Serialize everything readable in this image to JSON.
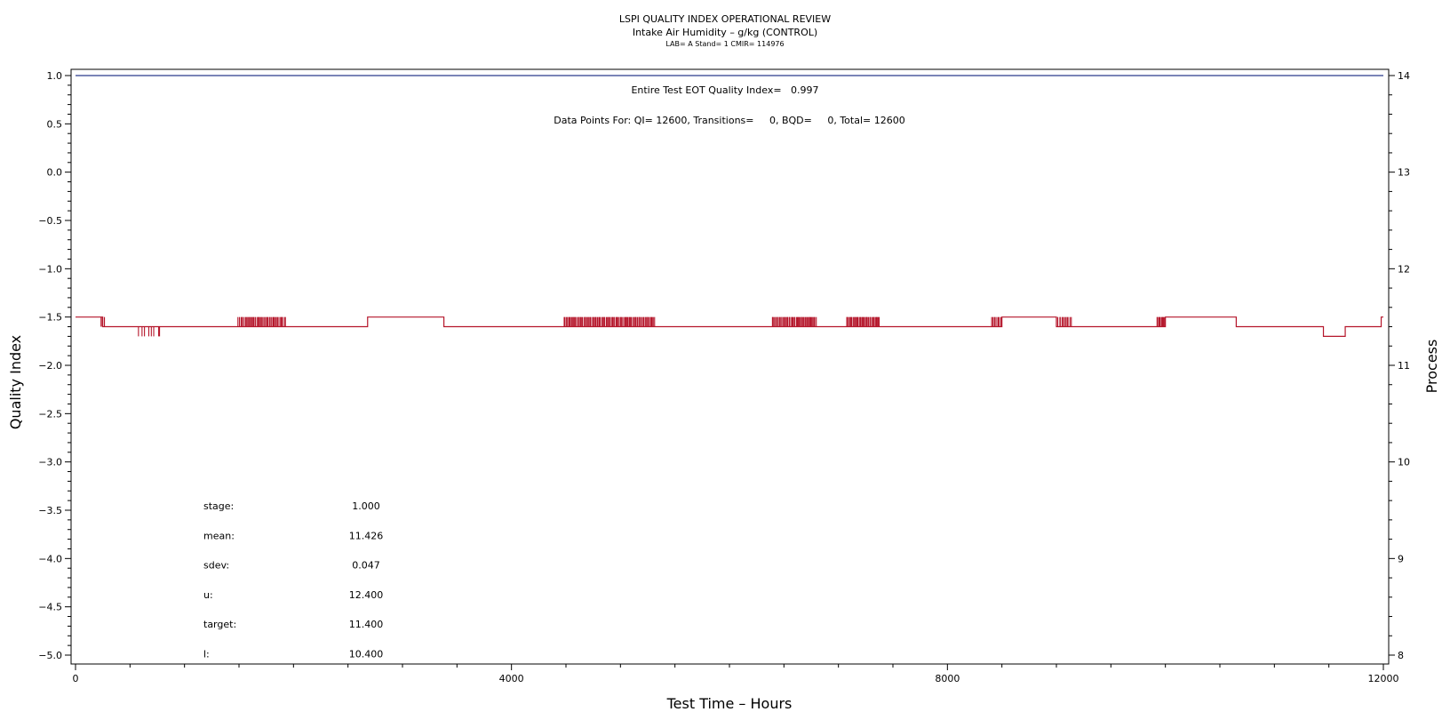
{
  "chart_data": {
    "type": "line",
    "title": "LSPI QUALITY INDEX OPERATIONAL REVIEW",
    "subtitle": "Intake Air Humidity – g/kg (CONTROL)",
    "subtitle2": "LAB= A Stand= 1 CMIR= 114976",
    "annotations": {
      "eot": "Entire Test EOT Quality Index=   0.997",
      "points": "Data Points For: QI= 12600, Transitions=     0, BQD=     0, Total= 12600"
    },
    "xlabel": "Test Time – Hours",
    "ylabel": "Quality Index",
    "y2label": "Process",
    "xlim": [
      0,
      12000
    ],
    "ylim": [
      -5.0,
      1.0
    ],
    "y2lim": [
      8,
      14
    ],
    "xticks": [
      "0",
      "4000",
      "8000",
      "12000"
    ],
    "xtick_values": [
      0,
      4000,
      8000,
      12000
    ],
    "yticks": [
      "1.0",
      "0.5",
      "0.0",
      "−0.5",
      "−1.0",
      "−1.5",
      "−2.0",
      "−2.5",
      "−3.0",
      "−3.5",
      "−4.0",
      "−4.5",
      "−5.0"
    ],
    "ytick_values": [
      1.0,
      0.5,
      0.0,
      -0.5,
      -1.0,
      -1.5,
      -2.0,
      -2.5,
      -3.0,
      -3.5,
      -4.0,
      -4.5,
      -5.0
    ],
    "y2ticks": [
      "14",
      "13",
      "12",
      "11",
      "10",
      "9",
      "8"
    ],
    "y2tick_values": [
      14,
      13,
      12,
      11,
      10,
      9,
      8
    ],
    "colors": {
      "quality_index": "#2b3a8c",
      "process": "#b5162b"
    },
    "series": [
      {
        "axis": "left",
        "x": [
          0,
          12000
        ],
        "y": [
          1.0,
          1.0
        ]
      },
      {
        "axis": "right",
        "base_level": 11.4,
        "segments": [
          {
            "x": [
              0,
              250
            ],
            "y": 11.5
          },
          {
            "x": [
              250,
              2680
            ],
            "y": 11.4
          },
          {
            "x": [
              2680,
              3380
            ],
            "y": 11.5
          },
          {
            "x": [
              3380,
              8500
            ],
            "y": 11.4
          },
          {
            "x": [
              8500,
              9000
            ],
            "y": 11.5
          },
          {
            "x": [
              9000,
              10000
            ],
            "y": 11.4
          },
          {
            "x": [
              10000,
              10650
            ],
            "y": 11.5
          },
          {
            "x": [
              10650,
              11450
            ],
            "y": 11.4
          },
          {
            "x": [
              11450,
              11650
            ],
            "y": 11.3
          },
          {
            "x": [
              11650,
              11980
            ],
            "y": 11.4
          },
          {
            "x": [
              11980,
              12000
            ],
            "y": 11.5
          }
        ],
        "spikes": [
          {
            "x": [
              230,
              270
            ],
            "to": 11.5,
            "n": 3
          },
          {
            "x": [
              560,
              800
            ],
            "to": 11.3,
            "n": 8
          },
          {
            "x": [
              1490,
              1930
            ],
            "to": 11.5,
            "n": 42
          },
          {
            "x": [
              3380,
              3480
            ],
            "to": 11.4,
            "n": 10
          },
          {
            "x": [
              4480,
              5320
            ],
            "to": 11.5,
            "n": 85
          },
          {
            "x": [
              6390,
              6800
            ],
            "to": 11.5,
            "n": 45
          },
          {
            "x": [
              7070,
              7380
            ],
            "to": 11.5,
            "n": 35
          },
          {
            "x": [
              8400,
              8500
            ],
            "to": 11.5,
            "n": 8
          },
          {
            "x": [
              9000,
              9140
            ],
            "to": 11.5,
            "n": 12
          },
          {
            "x": [
              9920,
              10000
            ],
            "to": 11.5,
            "n": 10
          },
          {
            "x": [
              10650,
              10800
            ],
            "to": 11.4,
            "n": 12
          },
          {
            "x": [
              11450,
              11500
            ],
            "to": 11.4,
            "n": 3
          },
          {
            "x": [
              11580,
              11650
            ],
            "to": 11.4,
            "n": 3
          }
        ]
      }
    ],
    "stats": [
      {
        "label": "stage:",
        "value": "1.000"
      },
      {
        "label": "mean:",
        "value": "11.426"
      },
      {
        "label": "sdev:",
        "value": "0.047"
      },
      {
        "label": "u:",
        "value": "12.400"
      },
      {
        "label": "target:",
        "value": "11.400"
      },
      {
        "label": "l:",
        "value": "10.400"
      }
    ]
  }
}
